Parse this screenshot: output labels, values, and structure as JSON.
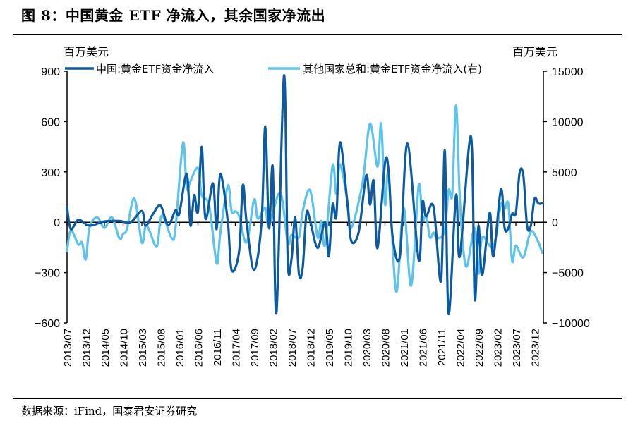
{
  "title": "图 8：中国黄金 ETF 净流入，其余国家净流出",
  "source": "数据来源：iFind，国泰君安证券研究",
  "colors": {
    "china": "#0b5aa2",
    "others": "#5ec3ec",
    "axis": "#000000"
  },
  "chart_data": {
    "type": "line",
    "left_unit": "百万美元",
    "right_unit": "百万美元",
    "left_ylim": [
      -600,
      900
    ],
    "left_yticks": [
      900,
      600,
      300,
      0,
      -300,
      -600
    ],
    "right_ylim": [
      -10000,
      15000
    ],
    "right_yticks": [
      15000,
      10000,
      5000,
      0,
      -5000,
      -10000
    ],
    "x_tick_labels": [
      "2013/07",
      "2013/12",
      "2014/05",
      "2014/10",
      "2015/03",
      "2015/08",
      "2016/01",
      "2016/06",
      "2016/11",
      "2017/04",
      "2017/09",
      "2018/02",
      "2018/07",
      "2018/12",
      "2019/05",
      "2019/10",
      "2020/03",
      "2020/08",
      "2021/01",
      "2021/06",
      "2021/11",
      "2022/04",
      "2022/09",
      "2023/02",
      "2023/07",
      "2023/12"
    ],
    "legend_position": "top",
    "series": [
      {
        "name": "中国:黄金ETF资金净流入",
        "axis": "left",
        "points": [
          [
            "2013/07",
            92
          ],
          [
            "2013/08",
            -41
          ],
          [
            "2013/10",
            15
          ],
          [
            "2014/01",
            -20
          ],
          [
            "2014/05",
            5
          ],
          [
            "2014/09",
            8
          ],
          [
            "2014/12",
            0
          ],
          [
            "2015/03",
            67
          ],
          [
            "2015/04",
            -20
          ],
          [
            "2015/06",
            50
          ],
          [
            "2015/08",
            99
          ],
          [
            "2015/10",
            -17
          ],
          [
            "2015/12",
            71
          ],
          [
            "2016/01",
            50
          ],
          [
            "2016/03",
            288
          ],
          [
            "2016/04",
            -20
          ],
          [
            "2016/05",
            162
          ],
          [
            "2016/06",
            64
          ],
          [
            "2016/07",
            449
          ],
          [
            "2016/08",
            22
          ],
          [
            "2016/10",
            232
          ],
          [
            "2016/11",
            -41
          ],
          [
            "2016/12",
            288
          ],
          [
            "2017/02",
            0
          ],
          [
            "2017/03",
            -286
          ],
          [
            "2017/05",
            -174
          ],
          [
            "2017/06",
            221
          ],
          [
            "2017/07",
            0
          ],
          [
            "2017/09",
            -286
          ],
          [
            "2017/11",
            0
          ],
          [
            "2017/12",
            571
          ],
          [
            "2018/01",
            -34
          ],
          [
            "2018/02",
            330
          ],
          [
            "2018/03",
            -538
          ],
          [
            "2018/05",
            874
          ],
          [
            "2018/06",
            -223
          ],
          [
            "2018/07",
            -223
          ],
          [
            "2018/08",
            29
          ],
          [
            "2018/09",
            -307
          ],
          [
            "2018/10",
            -272
          ],
          [
            "2018/11",
            50
          ],
          [
            "2018/12",
            10
          ],
          [
            "2019/02",
            -153
          ],
          [
            "2019/04",
            0
          ],
          [
            "2019/05",
            -202
          ],
          [
            "2019/06",
            106
          ],
          [
            "2019/07",
            35
          ],
          [
            "2019/08",
            476
          ],
          [
            "2019/10",
            105
          ],
          [
            "2019/11",
            -112
          ],
          [
            "2020/01",
            -56
          ],
          [
            "2020/03",
            280
          ],
          [
            "2020/04",
            105
          ],
          [
            "2020/05",
            245
          ],
          [
            "2020/06",
            -154
          ],
          [
            "2020/08",
            350
          ],
          [
            "2020/09",
            301
          ],
          [
            "2020/10",
            -77
          ],
          [
            "2020/12",
            -203
          ],
          [
            "2021/02",
            469
          ],
          [
            "2021/05",
            -224
          ],
          [
            "2021/06",
            119
          ],
          [
            "2021/07",
            35
          ],
          [
            "2021/09",
            91
          ],
          [
            "2021/11",
            -350
          ],
          [
            "2021/12",
            427
          ],
          [
            "2022/01",
            -546
          ],
          [
            "2022/03",
            161
          ],
          [
            "2022/04",
            -203
          ],
          [
            "2022/07",
            511
          ],
          [
            "2022/08",
            -455
          ],
          [
            "2022/09",
            -21
          ],
          [
            "2022/10",
            -315
          ],
          [
            "2022/12",
            56
          ],
          [
            "2023/01",
            -203
          ],
          [
            "2023/03",
            196
          ],
          [
            "2023/04",
            -35
          ],
          [
            "2023/05",
            -35
          ],
          [
            "2023/06",
            50
          ],
          [
            "2023/07",
            56
          ],
          [
            "2023/08",
            294
          ],
          [
            "2023/09",
            280
          ],
          [
            "2023/10",
            -21
          ],
          [
            "2023/11",
            -21
          ],
          [
            "2023/12",
            140
          ],
          [
            "2024/01",
            112
          ],
          [
            "2024/02",
            112
          ]
        ]
      },
      {
        "name": "其他国家总和:黄金ETF资金净流入(右)",
        "axis": "right",
        "points": [
          [
            "2013/07",
            -2900
          ],
          [
            "2013/08",
            -800
          ],
          [
            "2013/10",
            -2200
          ],
          [
            "2013/11",
            -2000
          ],
          [
            "2013/12",
            -3700
          ],
          [
            "2014/01",
            -560
          ],
          [
            "2014/03",
            490
          ],
          [
            "2014/05",
            -560
          ],
          [
            "2014/07",
            490
          ],
          [
            "2014/09",
            -1600
          ],
          [
            "2014/10",
            -1150
          ],
          [
            "2014/11",
            -680
          ],
          [
            "2015/01",
            2360
          ],
          [
            "2015/03",
            -2000
          ],
          [
            "2015/04",
            -330
          ],
          [
            "2015/05",
            -800
          ],
          [
            "2015/07",
            -2430
          ],
          [
            "2015/08",
            370
          ],
          [
            "2015/09",
            370
          ],
          [
            "2015/11",
            -1600
          ],
          [
            "2015/12",
            -560
          ],
          [
            "2016/02",
            7860
          ],
          [
            "2016/03",
            3400
          ],
          [
            "2016/04",
            4100
          ],
          [
            "2016/06",
            5400
          ],
          [
            "2016/07",
            2700
          ],
          [
            "2016/09",
            1660
          ],
          [
            "2016/11",
            -4070
          ],
          [
            "2016/12",
            -1030
          ],
          [
            "2017/02",
            3650
          ],
          [
            "2017/03",
            1080
          ],
          [
            "2017/04",
            1080
          ],
          [
            "2017/05",
            610
          ],
          [
            "2017/07",
            -2000
          ],
          [
            "2017/09",
            2250
          ],
          [
            "2017/10",
            370
          ],
          [
            "2017/12",
            1430
          ],
          [
            "2018/01",
            -330
          ],
          [
            "2018/04",
            2950
          ],
          [
            "2018/06",
            -2000
          ],
          [
            "2018/07",
            -1260
          ],
          [
            "2018/09",
            -1500
          ],
          [
            "2018/10",
            1080
          ],
          [
            "2018/12",
            3180
          ],
          [
            "2019/02",
            -1500
          ],
          [
            "2019/03",
            140
          ],
          [
            "2019/04",
            -2200
          ],
          [
            "2019/06",
            5640
          ],
          [
            "2019/07",
            2830
          ],
          [
            "2019/08",
            5760
          ],
          [
            "2019/10",
            2000
          ],
          [
            "2019/11",
            -560
          ],
          [
            "2020/02",
            3900
          ],
          [
            "2020/04",
            9780
          ],
          [
            "2020/06",
            5520
          ],
          [
            "2020/07",
            9780
          ],
          [
            "2020/08",
            1780
          ],
          [
            "2020/09",
            4820
          ],
          [
            "2020/11",
            -6880
          ],
          [
            "2021/01",
            1430
          ],
          [
            "2021/03",
            -6300
          ],
          [
            "2021/05",
            3650
          ],
          [
            "2021/06",
            260
          ],
          [
            "2021/07",
            730
          ],
          [
            "2021/08",
            -1500
          ],
          [
            "2021/09",
            -1030
          ],
          [
            "2021/10",
            -1600
          ],
          [
            "2021/12",
            -800
          ],
          [
            "2022/01",
            3180
          ],
          [
            "2022/02",
            2830
          ],
          [
            "2022/03",
            11600
          ],
          [
            "2022/04",
            2480
          ],
          [
            "2022/05",
            -2900
          ],
          [
            "2022/06",
            -4300
          ],
          [
            "2022/08",
            -560
          ],
          [
            "2022/09",
            -5120
          ],
          [
            "2022/10",
            -1500
          ],
          [
            "2023/01",
            -2430
          ],
          [
            "2023/03",
            1780
          ],
          [
            "2023/04",
            1310
          ],
          [
            "2023/05",
            1780
          ],
          [
            "2023/06",
            -3840
          ],
          [
            "2023/07",
            -2320
          ],
          [
            "2023/09",
            -3490
          ],
          [
            "2023/11",
            -910
          ],
          [
            "2024/01",
            -1960
          ],
          [
            "2024/02",
            -3020
          ]
        ]
      }
    ]
  }
}
